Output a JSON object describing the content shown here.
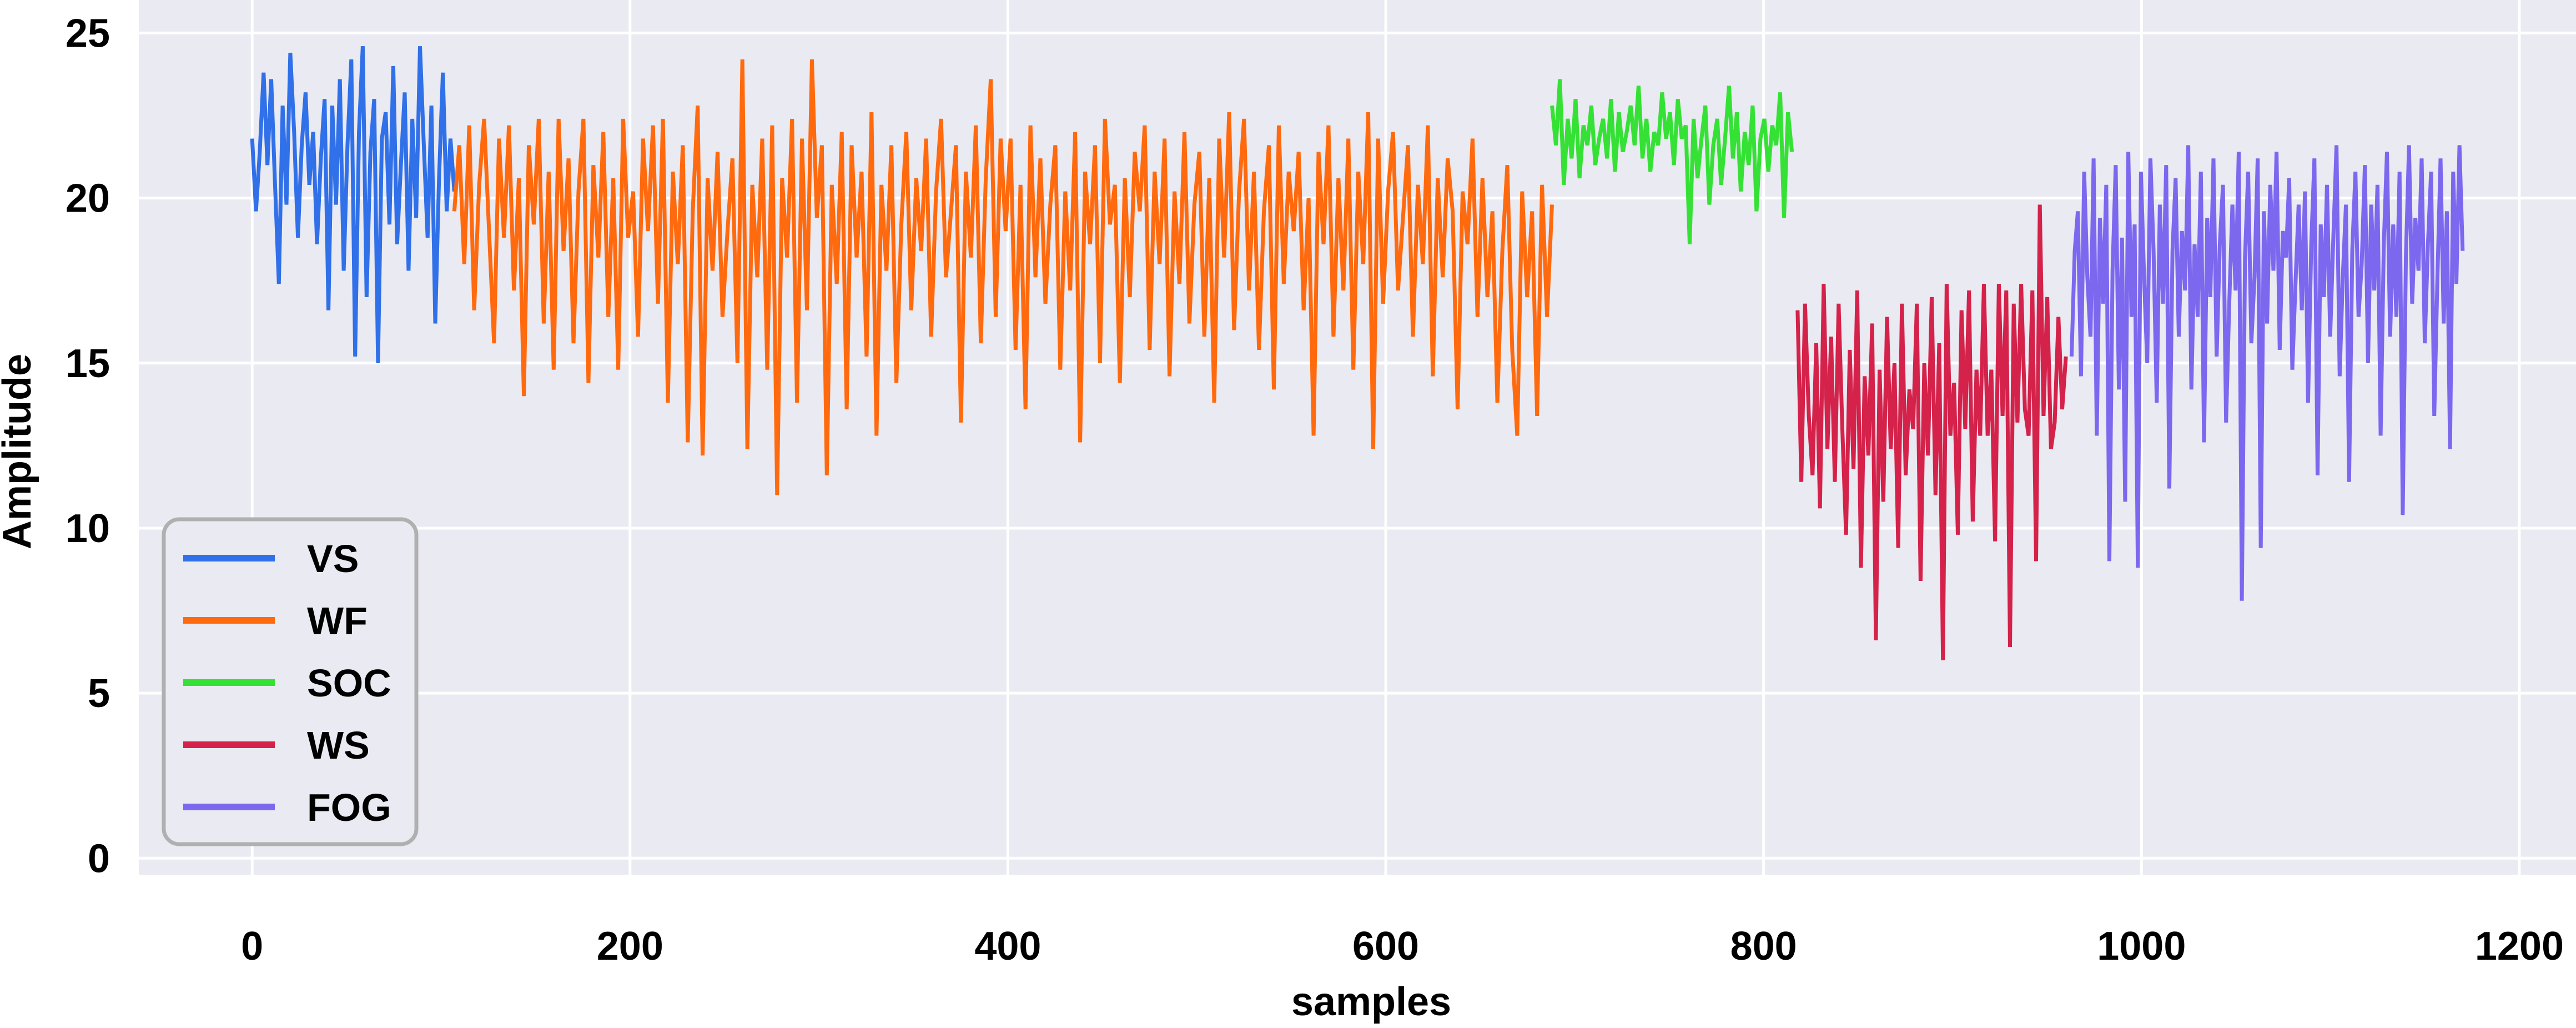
{
  "chart_data": {
    "type": "line",
    "title": "",
    "xlabel": "samples",
    "ylabel": "Amplitude",
    "xlim": [
      -60,
      1230
    ],
    "ylim": [
      -0.5,
      26
    ],
    "xticks": [
      0,
      200,
      400,
      600,
      800,
      1000,
      1200
    ],
    "yticks": [
      0,
      5,
      10,
      15,
      20,
      25
    ],
    "xtick_labels": [
      "0",
      "200",
      "400",
      "600",
      "800",
      "1000",
      "1200"
    ],
    "ytick_labels": [
      "0",
      "5",
      "10",
      "15",
      "20",
      "25"
    ],
    "grid": true,
    "legend_position": "lower-left",
    "series": [
      {
        "name": "VS",
        "color": "#3070e8",
        "x_range": [
          0,
          107
        ],
        "values": [
          21.8,
          19.6,
          21.4,
          23.8,
          21.0,
          23.6,
          20.4,
          17.4,
          22.8,
          19.8,
          24.4,
          22.0,
          18.8,
          21.6,
          23.2,
          20.4,
          22.0,
          18.6,
          21.2,
          23.0,
          16.6,
          22.8,
          19.8,
          23.6,
          17.8,
          21.6,
          24.2,
          15.2,
          22.0,
          24.6,
          17.0,
          21.4,
          23.0,
          15.0,
          21.8,
          22.6,
          19.2,
          24.0,
          18.6,
          21.0,
          23.2,
          17.8,
          22.4,
          19.4,
          24.6,
          21.6,
          18.8,
          22.8,
          16.2,
          20.6,
          23.8,
          19.6,
          21.8,
          20.2
        ]
      },
      {
        "name": "WF",
        "color": "#ff6a0e",
        "x_range": [
          107,
          688
        ],
        "values": [
          19.6,
          21.6,
          18.0,
          22.2,
          16.6,
          20.4,
          22.4,
          19.0,
          15.6,
          21.8,
          18.8,
          22.2,
          17.2,
          20.6,
          14.0,
          21.6,
          19.2,
          22.4,
          16.2,
          20.8,
          14.8,
          22.4,
          18.4,
          21.2,
          15.6,
          20.2,
          22.4,
          14.4,
          21.0,
          18.2,
          22.0,
          16.4,
          20.6,
          14.8,
          22.4,
          18.8,
          20.2,
          15.8,
          21.8,
          19.0,
          22.2,
          16.8,
          22.4,
          13.8,
          20.8,
          18.0,
          21.6,
          12.6,
          19.6,
          22.8,
          12.2,
          20.6,
          17.8,
          21.4,
          16.4,
          19.0,
          21.2,
          15.0,
          24.2,
          12.4,
          20.4,
          17.6,
          21.8,
          14.8,
          22.2,
          11.0,
          20.6,
          18.2,
          22.4,
          13.8,
          21.8,
          16.6,
          24.2,
          19.4,
          21.6,
          11.6,
          20.4,
          17.4,
          22.0,
          13.6,
          21.6,
          18.2,
          20.8,
          15.2,
          22.6,
          12.8,
          20.4,
          17.8,
          21.6,
          14.4,
          19.2,
          22.0,
          16.6,
          20.6,
          18.4,
          21.8,
          15.8,
          20.2,
          22.4,
          17.6,
          19.6,
          21.6,
          13.2,
          20.8,
          18.2,
          22.2,
          15.6,
          20.6,
          23.6,
          16.4,
          21.8,
          19.0,
          21.8,
          15.4,
          20.4,
          13.6,
          22.2,
          17.6,
          21.2,
          16.8,
          19.8,
          21.6,
          14.8,
          20.2,
          17.2,
          22.0,
          12.6,
          20.8,
          18.6,
          21.6,
          15.0,
          22.4,
          19.2,
          20.4,
          14.4,
          20.6,
          17.0,
          21.4,
          19.6,
          22.2,
          15.4,
          20.8,
          18.0,
          21.8,
          14.6,
          20.2,
          17.4,
          22.0,
          16.2,
          19.8,
          21.4,
          15.8,
          20.6,
          13.8,
          21.8,
          18.2,
          22.6,
          16.0,
          20.2,
          22.4,
          17.2,
          20.8,
          15.4,
          19.6,
          21.6,
          14.2,
          22.2,
          17.4,
          20.8,
          19.0,
          21.4,
          16.6,
          20.0,
          12.8,
          21.4,
          18.6,
          22.2,
          15.8,
          20.6,
          17.2,
          21.8,
          14.8,
          20.8,
          18.0,
          22.6,
          12.4,
          21.8,
          16.8,
          20.2,
          22.0,
          17.2,
          19.4,
          21.6,
          15.8,
          20.4,
          18.0,
          22.2,
          14.6,
          20.6,
          17.6,
          21.2,
          19.6,
          13.6,
          20.2,
          18.6,
          21.8,
          16.4,
          20.6,
          17.0,
          19.6,
          13.8,
          18.4,
          21.0,
          15.4,
          12.8,
          20.2,
          17.0,
          19.6,
          13.4,
          20.4,
          16.4,
          19.8
        ]
      },
      {
        "name": "SOC",
        "color": "#35e135",
        "x_range": [
          688,
          815
        ],
        "values": [
          22.8,
          21.6,
          23.6,
          20.4,
          22.4,
          21.2,
          23.0,
          20.6,
          22.2,
          21.6,
          22.8,
          21.0,
          21.8,
          22.4,
          21.2,
          23.0,
          20.8,
          22.6,
          21.4,
          22.0,
          22.8,
          21.6,
          23.4,
          21.2,
          22.4,
          20.8,
          22.0,
          21.6,
          23.2,
          21.8,
          22.6,
          21.0,
          23.0,
          21.8,
          22.2,
          18.6,
          22.4,
          20.6,
          21.8,
          22.8,
          19.8,
          21.6,
          22.4,
          20.4,
          21.8,
          23.4,
          21.2,
          22.6,
          20.2,
          22.0,
          21.0,
          22.8,
          19.6,
          21.8,
          22.4,
          20.8,
          22.2,
          21.6,
          23.2,
          19.4,
          22.6,
          21.4
        ]
      },
      {
        "name": "WS",
        "color": "#d4224a",
        "x_range": [
          818,
          960
        ],
        "values": [
          16.6,
          11.4,
          16.8,
          13.4,
          11.6,
          15.6,
          10.6,
          17.4,
          12.4,
          15.8,
          11.4,
          16.8,
          13.0,
          9.8,
          15.4,
          11.8,
          17.2,
          8.8,
          14.6,
          12.2,
          16.2,
          6.6,
          14.8,
          10.8,
          16.4,
          12.4,
          15.0,
          9.4,
          16.8,
          11.6,
          14.2,
          13.0,
          16.8,
          8.4,
          15.0,
          12.2,
          17.0,
          11.0,
          15.6,
          6.0,
          17.4,
          12.8,
          14.4,
          9.8,
          16.6,
          13.0,
          17.2,
          10.2,
          14.8,
          12.8,
          17.4,
          12.8,
          14.8,
          9.6,
          17.4,
          13.4,
          17.2,
          6.4,
          16.8,
          13.2,
          17.4,
          13.6,
          12.8,
          17.2,
          9.0,
          19.8,
          13.4,
          17.0,
          12.4,
          13.2,
          16.4,
          13.6,
          15.2
        ]
      },
      {
        "name": "FOG",
        "color": "#7b68ee",
        "x_range": [
          963,
          1170
        ],
        "values": [
          15.2,
          18.4,
          19.6,
          14.6,
          20.8,
          17.6,
          15.8,
          21.2,
          12.8,
          19.4,
          16.8,
          20.4,
          9.0,
          17.8,
          21.0,
          14.2,
          18.8,
          10.8,
          21.4,
          16.4,
          19.2,
          8.8,
          20.8,
          17.6,
          15.0,
          21.2,
          18.4,
          13.8,
          19.8,
          16.8,
          21.0,
          11.2,
          18.4,
          20.6,
          15.8,
          19.0,
          17.2,
          21.6,
          14.2,
          18.6,
          16.4,
          20.8,
          12.6,
          19.4,
          17.0,
          21.2,
          15.2,
          18.6,
          20.4,
          13.2,
          16.8,
          19.8,
          17.2,
          21.4,
          7.8,
          18.2,
          20.8,
          15.6,
          17.6,
          21.2,
          9.4,
          19.6,
          16.2,
          20.4,
          17.8,
          21.4,
          15.4,
          19.0,
          18.2,
          20.6,
          14.8,
          17.4,
          19.8,
          16.6,
          20.2,
          13.8,
          18.6,
          21.2,
          11.6,
          19.2,
          17.0,
          20.4,
          15.8,
          18.8,
          21.6,
          14.6,
          17.6,
          19.8,
          11.4,
          18.4,
          20.8,
          16.4,
          18.0,
          21.0,
          15.0,
          19.8,
          17.2,
          20.4,
          12.8,
          18.6,
          21.4,
          15.8,
          19.2,
          16.4,
          20.8,
          10.4,
          18.2,
          21.6,
          16.8,
          19.4,
          17.8,
          21.2,
          15.6,
          18.6,
          20.8,
          13.4,
          17.6,
          21.2,
          16.2,
          19.6,
          12.4,
          20.8,
          17.4,
          21.6,
          18.4
        ]
      }
    ]
  }
}
